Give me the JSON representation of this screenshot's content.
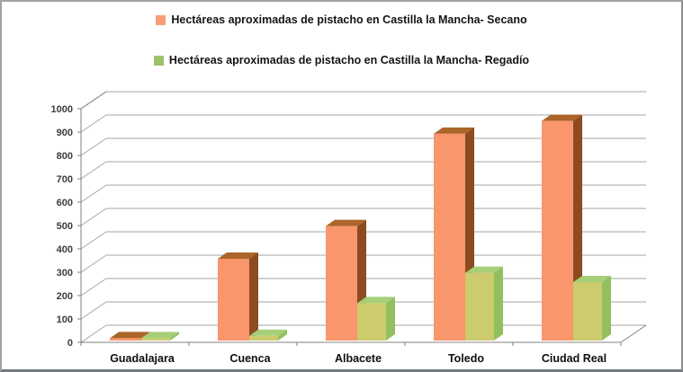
{
  "window": {
    "background": "#ffffff",
    "border_color": "#a2a2a2"
  },
  "legend": {
    "items": [
      {
        "key": "secano",
        "label": "Hectáreas aproximadas de pistacho en Castilla la Mancha- Secano",
        "swatch_color": "#F79E77"
      },
      {
        "key": "regadio",
        "label": "Hectáreas aproximadas de pistacho en Castilla la Mancha- Regadío",
        "swatch_color": "#9CC36B"
      }
    ]
  },
  "chart_data": {
    "type": "bar",
    "projection": "3d",
    "title": "",
    "xlabel": "",
    "ylabel": "",
    "categories": [
      "Guadalajara",
      "Cuenca",
      "Albacete",
      "Toledo",
      "Ciudad Real"
    ],
    "series": [
      {
        "key": "secano",
        "name": "Hectáreas aproximadas de pistacho en Castilla la Mancha- Secano",
        "values": [
          10,
          350,
          490,
          885,
          940
        ],
        "colors": {
          "front": "#F9966B",
          "top": "#AC6529",
          "side": "#8C4B21"
        }
      },
      {
        "key": "regadio",
        "name": "Hectáreas aproximadas de pistacho en Castilla la Mancha- Regadío",
        "values": [
          10,
          20,
          160,
          290,
          250
        ],
        "colors": {
          "front": "#CCCB6E",
          "top": "#A6CF77",
          "side": "#93C05F"
        }
      }
    ],
    "ylim": [
      0,
      1000
    ],
    "ytick_step": 100,
    "yticks": [
      "0",
      "100",
      "200",
      "300",
      "400",
      "500",
      "600",
      "700",
      "800",
      "900",
      "1000"
    ],
    "grid": true,
    "legend_position": "top",
    "colors": {
      "axis": "#808080",
      "grid": "#A6A6A6",
      "tick_label": "#3D3D3D",
      "category_label": "#0F0F0F"
    }
  }
}
